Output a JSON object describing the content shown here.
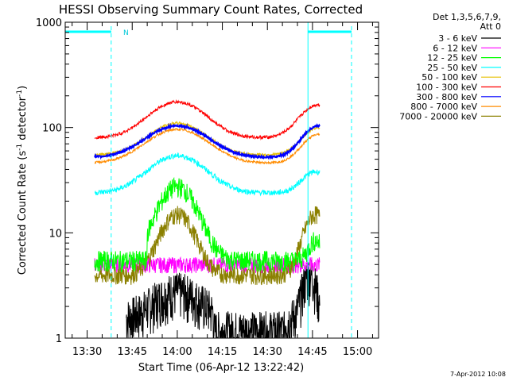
{
  "chart_data": {
    "type": "line",
    "title": "HESSI Observing Summary Count Rates, Corrected",
    "xlabel": "Start Time (06-Apr-12 13:22:42)",
    "ylabel_main": "Corrected Count Rate (s",
    "ylabel_sup1": "-1",
    "ylabel_mid": " detector",
    "ylabel_sup2": "-1",
    "ylabel_end": ")",
    "yscale": "log",
    "ylim": [
      1,
      1000
    ],
    "xlim_minutes": [
      "13:22:42",
      "15:07:00"
    ],
    "x_ticks": [
      "13:30",
      "13:45",
      "14:00",
      "14:15",
      "14:30",
      "14:45",
      "15:00"
    ],
    "y_ticks": [
      "1",
      "10",
      "100",
      "1000"
    ],
    "legend_header": [
      "Det 1,3,5,6,7,9,",
      "Att 0"
    ],
    "legend_position": "top-right",
    "series": [
      {
        "name": "3 - 6 keV",
        "color": "#000000"
      },
      {
        "name": "6 - 12 keV",
        "color": "#ff00ff"
      },
      {
        "name": "12 - 25 keV",
        "color": "#00ff00"
      },
      {
        "name": "25 - 50 keV",
        "color": "#00ffff"
      },
      {
        "name": "50 - 100 keV",
        "color": "#e6c000"
      },
      {
        "name": "100 - 300 keV",
        "color": "#ff0000"
      },
      {
        "name": "300 - 800 keV",
        "color": "#0000ff"
      },
      {
        "name": "800 - 7000 keV",
        "color": "#ff8c00"
      },
      {
        "name": "7000 - 20000 keV",
        "color": "#8b8000"
      }
    ],
    "night_marker_label": "N",
    "night_marker_color": "#00ffff",
    "timestamp": "7-Apr-2012 10:08"
  }
}
